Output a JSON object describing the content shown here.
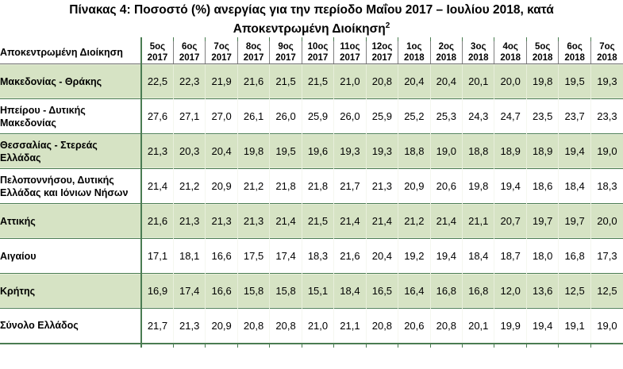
{
  "page": {
    "title_text": "Πίνακας 4: Ποσοστό (%) ανεργίας για την περίοδο Μαΐου 2017 – Ιουλίου 2018, κατά Αποκεντρωμένη Διοίκηση",
    "title_superscript": "2"
  },
  "colors": {
    "row_band_green": "#d6e3c4",
    "row_band_white": "#ffffff",
    "table_border_green": "#4a7c52",
    "header_border_gray": "#7f7f7f",
    "text_color": "#000000"
  },
  "table": {
    "region_column_header": "Αποκεντρωμένη Διοίκηση",
    "column_headers": [
      {
        "month": "5ος",
        "year": "2017"
      },
      {
        "month": "6ος",
        "year": "2017"
      },
      {
        "month": "7ος",
        "year": "2017"
      },
      {
        "month": "8ος",
        "year": "2017"
      },
      {
        "month": "9ος",
        "year": "2017"
      },
      {
        "month": "10ος",
        "year": "2017"
      },
      {
        "month": "11ος",
        "year": "2017"
      },
      {
        "month": "12ος",
        "year": "2017"
      },
      {
        "month": "1ος",
        "year": "2018"
      },
      {
        "month": "2ος",
        "year": "2018"
      },
      {
        "month": "3ος",
        "year": "2018"
      },
      {
        "month": "4ος",
        "year": "2018"
      },
      {
        "month": "5ος",
        "year": "2018"
      },
      {
        "month": "6ος",
        "year": "2018"
      },
      {
        "month": "7ος",
        "year": "2018"
      }
    ],
    "rows": [
      {
        "region": "Μακεδονίας - Θράκης",
        "values": [
          "22,5",
          "22,3",
          "21,9",
          "21,6",
          "21,5",
          "21,5",
          "21,0",
          "20,8",
          "20,4",
          "20,4",
          "20,1",
          "20,0",
          "19,8",
          "19,5",
          "19,3"
        ]
      },
      {
        "region": "Ηπείρου - Δυτικής Μακεδονίας",
        "values": [
          "27,6",
          "27,1",
          "27,0",
          "26,1",
          "26,0",
          "25,9",
          "26,0",
          "25,9",
          "25,2",
          "25,3",
          "24,3",
          "24,7",
          "23,5",
          "23,7",
          "23,3"
        ]
      },
      {
        "region": "Θεσσαλίας - Στερεάς Ελλάδας",
        "values": [
          "21,3",
          "20,3",
          "20,4",
          "19,8",
          "19,5",
          "19,6",
          "19,3",
          "19,3",
          "18,8",
          "19,0",
          "18,8",
          "18,9",
          "18,9",
          "19,4",
          "19,0"
        ]
      },
      {
        "region": "Πελοποννήσου, Δυτικής Ελλάδας και Ιόνιων Νήσων",
        "values": [
          "21,4",
          "21,2",
          "20,9",
          "21,2",
          "21,8",
          "21,8",
          "21,7",
          "21,3",
          "20,9",
          "20,6",
          "19,8",
          "19,4",
          "18,6",
          "18,4",
          "18,3"
        ]
      },
      {
        "region": "Αττικής",
        "values": [
          "21,6",
          "21,3",
          "21,3",
          "21,3",
          "21,4",
          "21,5",
          "21,4",
          "21,4",
          "21,2",
          "21,4",
          "21,1",
          "20,7",
          "19,7",
          "19,7",
          "20,0"
        ]
      },
      {
        "region": "Αιγαίου",
        "values": [
          "17,1",
          "18,1",
          "16,6",
          "17,5",
          "17,4",
          "18,3",
          "21,6",
          "20,4",
          "19,2",
          "19,4",
          "18,4",
          "18,7",
          "18,0",
          "16,8",
          "17,3"
        ]
      },
      {
        "region": "Κρήτης",
        "values": [
          "16,9",
          "17,4",
          "16,6",
          "15,8",
          "15,8",
          "15,1",
          "18,4",
          "16,5",
          "16,4",
          "16,8",
          "16,8",
          "12,0",
          "13,6",
          "12,5",
          "12,5"
        ]
      },
      {
        "region": "Σύνολο Ελλάδος",
        "values": [
          "21,7",
          "21,3",
          "20,9",
          "20,8",
          "20,8",
          "21,0",
          "21,1",
          "20,8",
          "20,6",
          "20,8",
          "20,1",
          "19,9",
          "19,4",
          "19,1",
          "19,0"
        ]
      }
    ]
  }
}
